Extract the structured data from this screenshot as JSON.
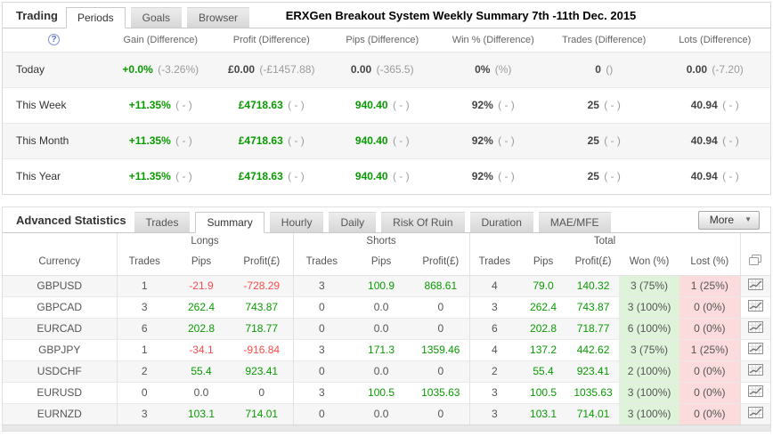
{
  "colors": {
    "positive_text": "#089b00",
    "negative_text": "#fa4b4b",
    "won_cell_bg": "#dff3da",
    "lost_cell_bg": "#fbdbdb",
    "help_icon_blue": "#5a6fd8"
  },
  "trading": {
    "panel_label": "Trading",
    "tabs": [
      {
        "label": "Periods",
        "active": true
      },
      {
        "label": "Goals",
        "active": false
      },
      {
        "label": "Browser",
        "active": false
      }
    ],
    "heading": "ERXGen Breakout System Weekly Summary 7th -11th Dec. 2015",
    "help_icon": "?",
    "columns": [
      "Gain (Difference)",
      "Profit (Difference)",
      "Pips (Difference)",
      "Win % (Difference)",
      "Trades (Difference)",
      "Lots (Difference)"
    ],
    "rows": [
      {
        "label": "Today",
        "cells": [
          {
            "v": "+0.0%",
            "d": "(-3.26%)",
            "c": "pos"
          },
          {
            "v": "£0.00",
            "d": "(-£1457.88)",
            "c": "neu"
          },
          {
            "v": "0.00",
            "d": "(-365.5)",
            "c": "neu"
          },
          {
            "v": "0%",
            "d": "(%)",
            "c": "neu"
          },
          {
            "v": "0",
            "d": "()",
            "c": "neu"
          },
          {
            "v": "0.00",
            "d": "(-7.20)",
            "c": "neu"
          }
        ]
      },
      {
        "label": "This Week",
        "cells": [
          {
            "v": "+11.35%",
            "d": "( - )",
            "c": "pos"
          },
          {
            "v": "£4718.63",
            "d": "( - )",
            "c": "pos"
          },
          {
            "v": "940.40",
            "d": "( - )",
            "c": "pos"
          },
          {
            "v": "92%",
            "d": "( - )",
            "c": "neu"
          },
          {
            "v": "25",
            "d": "( - )",
            "c": "neu"
          },
          {
            "v": "40.94",
            "d": "( - )",
            "c": "neu"
          }
        ]
      },
      {
        "label": "This Month",
        "cells": [
          {
            "v": "+11.35%",
            "d": "( - )",
            "c": "pos"
          },
          {
            "v": "£4718.63",
            "d": "( - )",
            "c": "pos"
          },
          {
            "v": "940.40",
            "d": "( - )",
            "c": "pos"
          },
          {
            "v": "92%",
            "d": "( - )",
            "c": "neu"
          },
          {
            "v": "25",
            "d": "( - )",
            "c": "neu"
          },
          {
            "v": "40.94",
            "d": "( - )",
            "c": "neu"
          }
        ]
      },
      {
        "label": "This Year",
        "cells": [
          {
            "v": "+11.35%",
            "d": "( - )",
            "c": "pos"
          },
          {
            "v": "£4718.63",
            "d": "( - )",
            "c": "pos"
          },
          {
            "v": "940.40",
            "d": "( - )",
            "c": "pos"
          },
          {
            "v": "92%",
            "d": "( - )",
            "c": "neu"
          },
          {
            "v": "25",
            "d": "( - )",
            "c": "neu"
          },
          {
            "v": "40.94",
            "d": "( - )",
            "c": "neu"
          }
        ]
      }
    ]
  },
  "stats": {
    "panel_label": "Advanced Statistics",
    "tabs": [
      {
        "label": "Trades",
        "active": false
      },
      {
        "label": "Summary",
        "active": true
      },
      {
        "label": "Hourly",
        "active": false
      },
      {
        "label": "Daily",
        "active": false
      },
      {
        "label": "Risk Of Ruin",
        "active": false
      },
      {
        "label": "Duration",
        "active": false
      },
      {
        "label": "MAE/MFE",
        "active": false
      }
    ],
    "more_label": "More",
    "groups": {
      "longs": "Longs",
      "shorts": "Shorts",
      "total": "Total"
    },
    "columns": {
      "currency": "Currency",
      "trades": "Trades",
      "pips": "Pips",
      "profit": "Profit(£)",
      "won": "Won (%)",
      "lost": "Lost (%)"
    },
    "rows": [
      {
        "currency": "GBPUSD",
        "cells": [
          [
            "1",
            "neu"
          ],
          [
            "-21.9",
            "neg"
          ],
          [
            "-728.29",
            "neg"
          ],
          [
            "3",
            "neu"
          ],
          [
            "100.9",
            "pos"
          ],
          [
            "868.61",
            "pos"
          ],
          [
            "4",
            "neu"
          ],
          [
            "79.0",
            "pos"
          ],
          [
            "140.32",
            "pos"
          ],
          [
            "3 (75%)",
            "won"
          ],
          [
            "1 (25%)",
            "lost"
          ]
        ]
      },
      {
        "currency": "GBPCAD",
        "cells": [
          [
            "3",
            "neu"
          ],
          [
            "262.4",
            "pos"
          ],
          [
            "743.87",
            "pos"
          ],
          [
            "0",
            "neu"
          ],
          [
            "0.0",
            "neu"
          ],
          [
            "0",
            "neu"
          ],
          [
            "3",
            "neu"
          ],
          [
            "262.4",
            "pos"
          ],
          [
            "743.87",
            "pos"
          ],
          [
            "3 (100%)",
            "won"
          ],
          [
            "0 (0%)",
            "lost"
          ]
        ]
      },
      {
        "currency": "EURCAD",
        "cells": [
          [
            "6",
            "neu"
          ],
          [
            "202.8",
            "pos"
          ],
          [
            "718.77",
            "pos"
          ],
          [
            "0",
            "neu"
          ],
          [
            "0.0",
            "neu"
          ],
          [
            "0",
            "neu"
          ],
          [
            "6",
            "neu"
          ],
          [
            "202.8",
            "pos"
          ],
          [
            "718.77",
            "pos"
          ],
          [
            "6 (100%)",
            "won"
          ],
          [
            "0 (0%)",
            "lost"
          ]
        ]
      },
      {
        "currency": "GBPJPY",
        "cells": [
          [
            "1",
            "neu"
          ],
          [
            "-34.1",
            "neg"
          ],
          [
            "-916.84",
            "neg"
          ],
          [
            "3",
            "neu"
          ],
          [
            "171.3",
            "pos"
          ],
          [
            "1359.46",
            "pos"
          ],
          [
            "4",
            "neu"
          ],
          [
            "137.2",
            "pos"
          ],
          [
            "442.62",
            "pos"
          ],
          [
            "3 (75%)",
            "won"
          ],
          [
            "1 (25%)",
            "lost"
          ]
        ]
      },
      {
        "currency": "USDCHF",
        "cells": [
          [
            "2",
            "neu"
          ],
          [
            "55.4",
            "pos"
          ],
          [
            "923.41",
            "pos"
          ],
          [
            "0",
            "neu"
          ],
          [
            "0.0",
            "neu"
          ],
          [
            "0",
            "neu"
          ],
          [
            "2",
            "neu"
          ],
          [
            "55.4",
            "pos"
          ],
          [
            "923.41",
            "pos"
          ],
          [
            "2 (100%)",
            "won"
          ],
          [
            "0 (0%)",
            "lost"
          ]
        ]
      },
      {
        "currency": "EURUSD",
        "cells": [
          [
            "0",
            "neu"
          ],
          [
            "0.0",
            "neu"
          ],
          [
            "0",
            "neu"
          ],
          [
            "3",
            "neu"
          ],
          [
            "100.5",
            "pos"
          ],
          [
            "1035.63",
            "pos"
          ],
          [
            "3",
            "neu"
          ],
          [
            "100.5",
            "pos"
          ],
          [
            "1035.63",
            "pos"
          ],
          [
            "3 (100%)",
            "won"
          ],
          [
            "0 (0%)",
            "lost"
          ]
        ]
      },
      {
        "currency": "EURNZD",
        "cells": [
          [
            "3",
            "neu"
          ],
          [
            "103.1",
            "pos"
          ],
          [
            "714.01",
            "pos"
          ],
          [
            "0",
            "neu"
          ],
          [
            "0.0",
            "neu"
          ],
          [
            "0",
            "neu"
          ],
          [
            "3",
            "neu"
          ],
          [
            "103.1",
            "pos"
          ],
          [
            "714.01",
            "pos"
          ],
          [
            "3 (100%)",
            "won"
          ],
          [
            "0 (0%)",
            "lost"
          ]
        ]
      }
    ]
  }
}
